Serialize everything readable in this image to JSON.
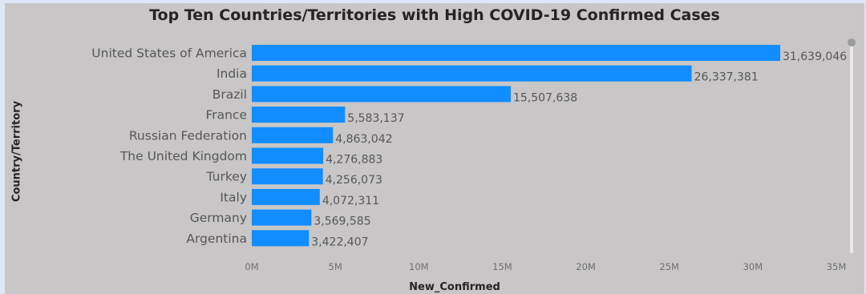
{
  "chart_data": {
    "type": "bar",
    "orientation": "horizontal",
    "title": "Top Ten Countries/Territories with High COVID-19 Confirmed Cases",
    "xlabel": "New_Confirmed",
    "ylabel": "Country/Territory",
    "categories": [
      "United States of America",
      "India",
      "Brazil",
      "France",
      "Russian Federation",
      "The United Kingdom",
      "Turkey",
      "Italy",
      "Germany",
      "Argentina"
    ],
    "values": [
      31639046,
      26337381,
      15507638,
      5583137,
      4863042,
      4276883,
      4256073,
      4072311,
      3569585,
      3422407
    ],
    "value_labels": [
      "31,639,046",
      "26,337,381",
      "15,507,638",
      "5,583,137",
      "4,863,042",
      "4,276,883",
      "4,256,073",
      "4,072,311",
      "3,569,585",
      "3,422,407"
    ],
    "xlim": [
      0,
      35000000
    ],
    "xticks": [
      0,
      5000000,
      10000000,
      15000000,
      20000000,
      25000000,
      30000000,
      35000000
    ],
    "xtick_labels": [
      "0M",
      "5M",
      "10M",
      "15M",
      "20M",
      "25M",
      "30M",
      "35M"
    ],
    "bar_color": "#118dff",
    "grid": false
  }
}
